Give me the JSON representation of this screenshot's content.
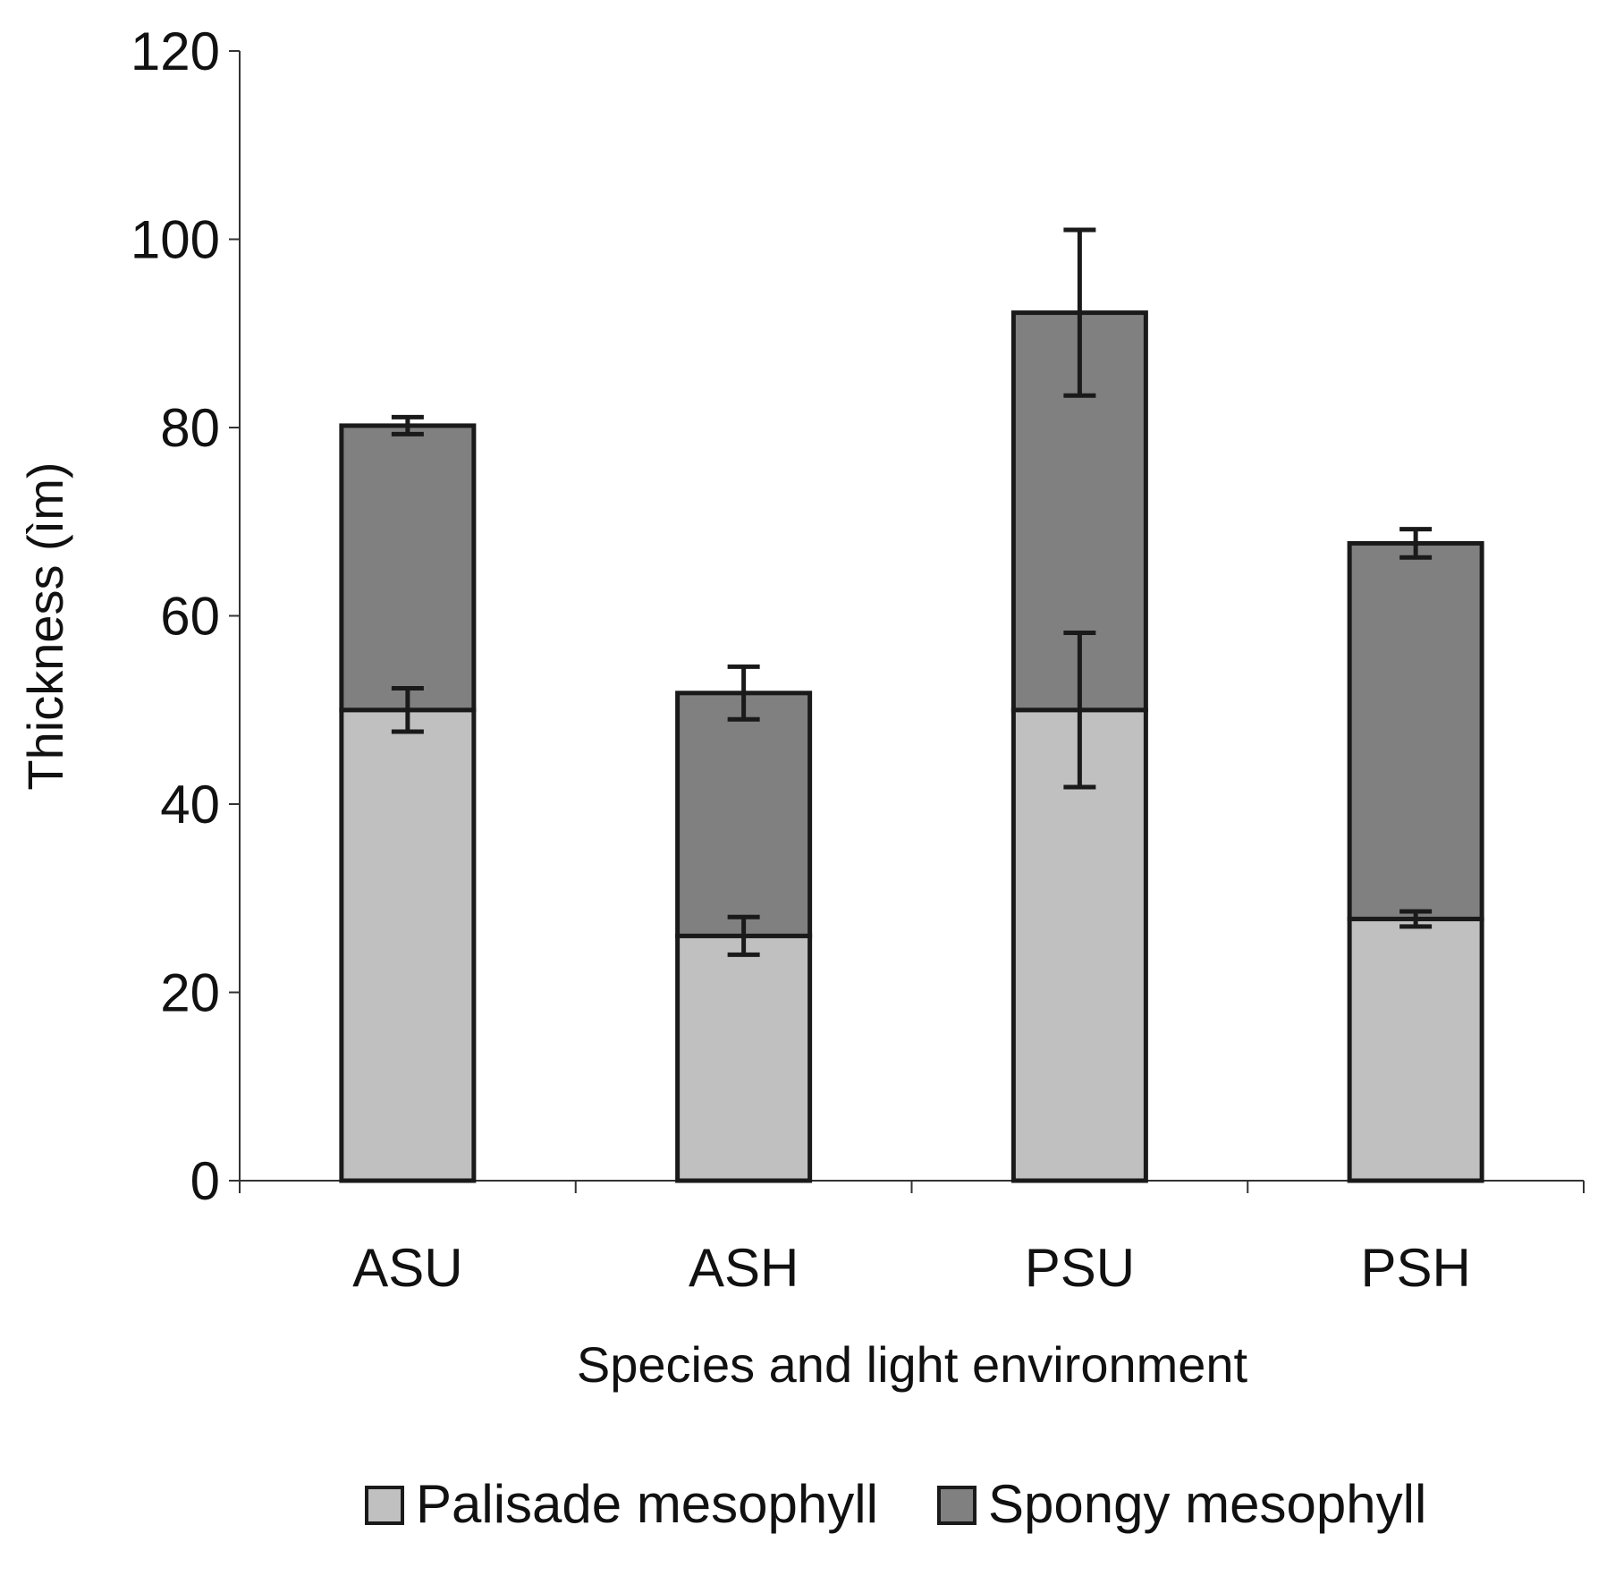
{
  "chart_data": {
    "type": "bar",
    "stacked": true,
    "title": "",
    "xlabel": "Species and light environment",
    "ylabel": "Thickness (ìm)",
    "ylim": [
      0,
      120
    ],
    "yticks": [
      0,
      20,
      40,
      60,
      80,
      100,
      120
    ],
    "categories": [
      "ASU",
      "ASH",
      "PSU",
      "PSH"
    ],
    "series": [
      {
        "name": "Palisade mesophyll",
        "color": "#c0c0c0",
        "values": [
          50,
          26,
          50,
          27.8
        ],
        "errors": [
          2.3,
          2.0,
          8.2,
          0.8
        ]
      },
      {
        "name": "Spongy mesophyll",
        "color": "#808080",
        "values": [
          30.2,
          25.8,
          42.2,
          39.9
        ],
        "errors": [
          0.9,
          2.8,
          8.8,
          1.5
        ]
      }
    ],
    "legend_position": "bottom",
    "grid": false
  }
}
